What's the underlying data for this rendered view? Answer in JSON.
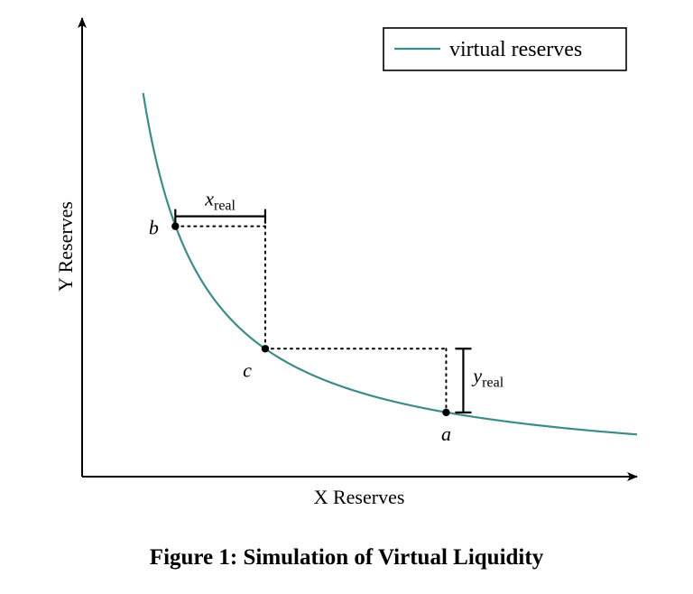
{
  "caption": "Figure 1: Simulation of Virtual Liquidity",
  "chart_data": {
    "type": "line",
    "xlabel": "X Reserves",
    "ylabel": "Y Reserves",
    "xlim": [
      0,
      10
    ],
    "ylim": [
      0,
      10
    ],
    "grid": false,
    "legend_position": "top-right",
    "series": [
      {
        "name": "virtual reserves",
        "color": "#3d8c8a",
        "formula": "y = 9.2 / x",
        "x_range": [
          1.1,
          10
        ]
      }
    ],
    "points": [
      {
        "label": "b",
        "x": 1.68,
        "y": 5.46
      },
      {
        "label": "c",
        "x": 3.3,
        "y": 2.79
      },
      {
        "label": "a",
        "x": 6.56,
        "y": 1.4
      }
    ],
    "annotations": [
      {
        "label": "x",
        "subscript": "real",
        "from": "b",
        "to": "c",
        "orientation": "horizontal"
      },
      {
        "label": "y",
        "subscript": "real",
        "from": "a",
        "to": "c",
        "orientation": "vertical"
      }
    ],
    "colors": {
      "curve": "#3d8c8a",
      "axes": "#000000",
      "guides": "#000000"
    }
  }
}
